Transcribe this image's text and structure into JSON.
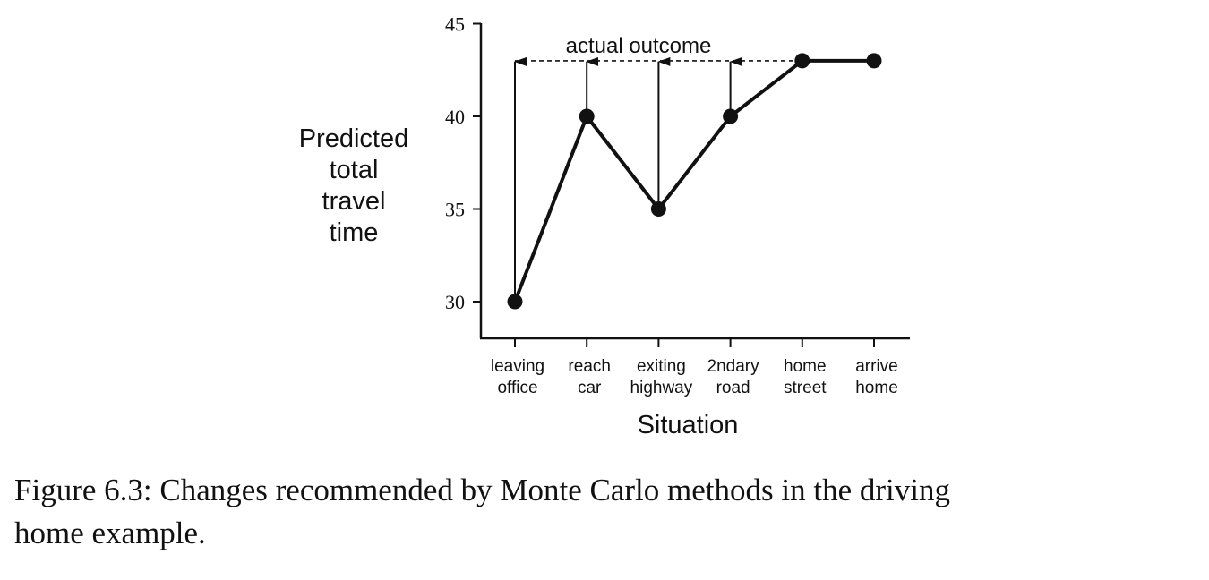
{
  "chart_data": {
    "type": "line",
    "categories": [
      [
        "leaving",
        "office"
      ],
      [
        "reach",
        "car"
      ],
      [
        "exiting",
        "highway"
      ],
      [
        "2ndary",
        "road"
      ],
      [
        "home",
        "street"
      ],
      [
        "arrive",
        "home"
      ]
    ],
    "values": [
      30,
      40,
      35,
      40,
      43,
      43
    ],
    "actual_outcome": 43,
    "annotation": "actual outcome",
    "arrows_from": [
      0,
      1,
      2,
      3
    ],
    "ylabel": [
      "Predicted",
      "total",
      "travel",
      "time"
    ],
    "xlabel": "Situation",
    "ylim": [
      28,
      45
    ],
    "yticks": [
      30,
      35,
      40,
      45
    ],
    "colors": {
      "ink": "#111111"
    }
  },
  "caption": {
    "line1": "Figure 6.3:  Changes recommended by Monte Carlo methods in the driving",
    "line2": "home example."
  }
}
